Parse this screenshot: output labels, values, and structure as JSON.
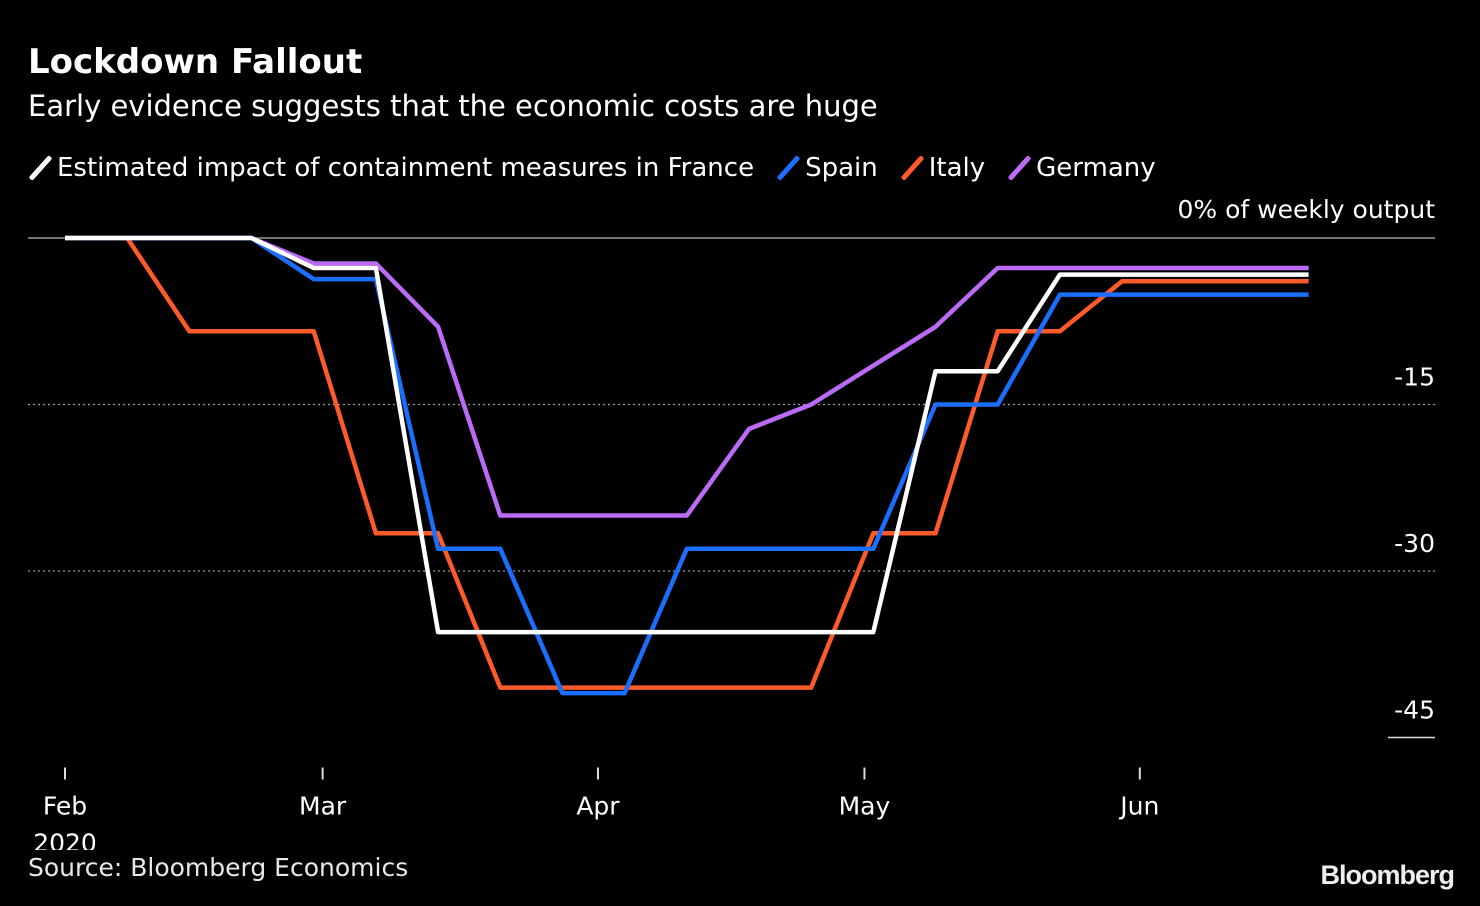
{
  "title": "Lockdown Fallout",
  "subtitle": "Early evidence suggests that the economic costs are huge",
  "source": "Source: Bloomberg Economics",
  "logo_text": "Bloomberg",
  "chart_data": {
    "type": "line",
    "y_unit_label": "0% of weekly output",
    "ylim": [
      -45,
      0
    ],
    "yticks": [
      0,
      -15,
      -30,
      -45
    ],
    "ytick_labels": [
      "",
      "-15",
      "-30",
      "-45"
    ],
    "xlim": [
      "2020-02-01",
      "2020-06-25"
    ],
    "xticks": [
      {
        "date": "2020-02-01",
        "label": "Feb",
        "sublabel": "2020"
      },
      {
        "date": "2020-03-01",
        "label": "Mar",
        "sublabel": ""
      },
      {
        "date": "2020-04-01",
        "label": "Apr",
        "sublabel": ""
      },
      {
        "date": "2020-05-01",
        "label": "May",
        "sublabel": ""
      },
      {
        "date": "2020-06-01",
        "label": "Jun",
        "sublabel": ""
      }
    ],
    "grid": "horizontal dotted",
    "legend_position": "top",
    "series": [
      {
        "name": "Estimated impact of containment measures in France",
        "color": "#ffffff",
        "x": [
          "2020-02-01",
          "2020-02-08",
          "2020-02-15",
          "2020-02-22",
          "2020-02-29",
          "2020-03-07",
          "2020-03-14",
          "2020-03-21",
          "2020-03-28",
          "2020-04-04",
          "2020-04-11",
          "2020-04-18",
          "2020-04-25",
          "2020-05-02",
          "2020-05-09",
          "2020-05-16",
          "2020-05-23",
          "2020-05-30",
          "2020-06-06",
          "2020-06-13",
          "2020-06-20"
        ],
        "values": [
          0,
          0,
          0,
          0,
          -2.7,
          -2.7,
          -35.5,
          -35.5,
          -35.5,
          -35.5,
          -35.5,
          -35.5,
          -35.5,
          -35.5,
          -12,
          -12,
          -3.3,
          -3.3,
          -3.3,
          -3.3,
          -3.3
        ]
      },
      {
        "name": "Spain",
        "color": "#1a6fff",
        "x": [
          "2020-02-01",
          "2020-02-08",
          "2020-02-15",
          "2020-02-22",
          "2020-02-29",
          "2020-03-07",
          "2020-03-14",
          "2020-03-21",
          "2020-03-28",
          "2020-04-04",
          "2020-04-11",
          "2020-04-18",
          "2020-04-25",
          "2020-05-02",
          "2020-05-09",
          "2020-05-16",
          "2020-05-23",
          "2020-05-30",
          "2020-06-06",
          "2020-06-13",
          "2020-06-20"
        ],
        "values": [
          0,
          0,
          0,
          0,
          -3.7,
          -3.7,
          -28,
          -28,
          -41,
          -41,
          -28,
          -28,
          -28,
          -28,
          -15,
          -15,
          -5.1,
          -5.1,
          -5.1,
          -5.1,
          -5.1
        ]
      },
      {
        "name": "Italy",
        "color": "#ff5a2a",
        "x": [
          "2020-02-01",
          "2020-02-08",
          "2020-02-15",
          "2020-02-22",
          "2020-02-29",
          "2020-03-07",
          "2020-03-14",
          "2020-03-21",
          "2020-03-28",
          "2020-04-04",
          "2020-04-11",
          "2020-04-18",
          "2020-04-25",
          "2020-05-02",
          "2020-05-09",
          "2020-05-16",
          "2020-05-23",
          "2020-05-30",
          "2020-06-06",
          "2020-06-13",
          "2020-06-20"
        ],
        "values": [
          0,
          0,
          -8.4,
          -8.4,
          -8.4,
          -26.6,
          -26.6,
          -40.5,
          -40.5,
          -40.5,
          -40.5,
          -40.5,
          -40.5,
          -26.6,
          -26.6,
          -8.4,
          -8.4,
          -3.9,
          -3.9,
          -3.9,
          -3.9
        ]
      },
      {
        "name": "Germany",
        "color": "#bb6bf5",
        "x": [
          "2020-02-01",
          "2020-02-08",
          "2020-02-15",
          "2020-02-22",
          "2020-02-29",
          "2020-03-07",
          "2020-03-14",
          "2020-03-21",
          "2020-03-28",
          "2020-04-04",
          "2020-04-11",
          "2020-04-18",
          "2020-04-25",
          "2020-05-02",
          "2020-05-09",
          "2020-05-16",
          "2020-05-23",
          "2020-05-30",
          "2020-06-06",
          "2020-06-13",
          "2020-06-20"
        ],
        "values": [
          0,
          0,
          0,
          0,
          -2.3,
          -2.3,
          -8,
          -25,
          -25,
          -25,
          -25,
          -17.2,
          -15,
          -11.5,
          -8,
          -2.7,
          -2.7,
          -2.7,
          -2.7,
          -2.7,
          -2.7
        ]
      }
    ]
  }
}
